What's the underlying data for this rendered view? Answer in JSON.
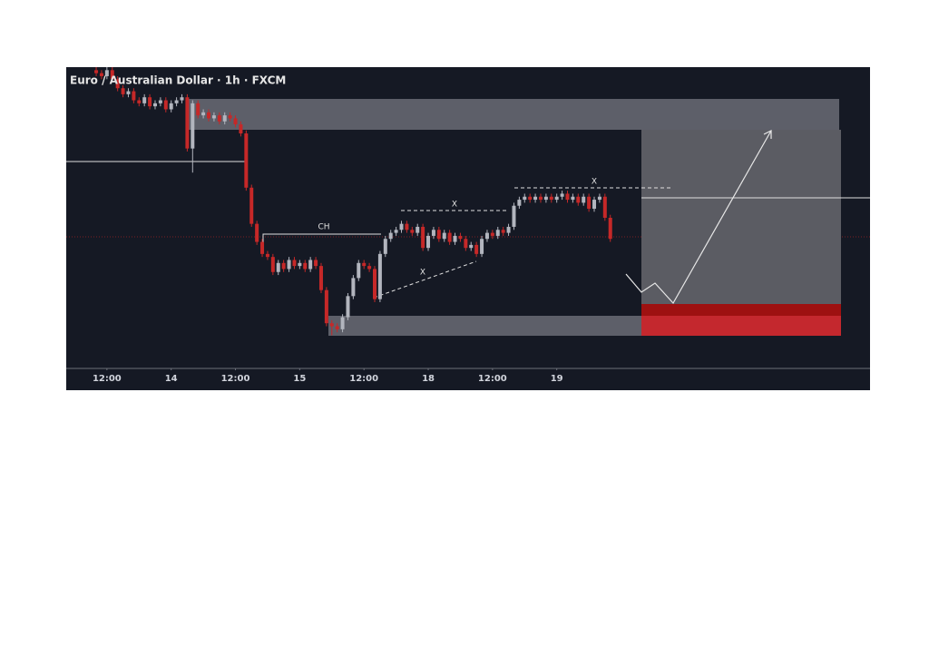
{
  "chart_data": {
    "type": "candlestick",
    "title": "Euro / Australian Dollar · 1h · FXCM",
    "x": [
      10,
      11,
      12,
      13,
      14,
      15,
      16,
      17,
      18,
      19,
      20,
      21,
      22,
      23,
      24,
      25,
      26,
      27,
      28,
      29,
      30,
      31,
      32,
      33,
      34,
      35,
      36,
      37,
      38,
      39,
      40,
      41,
      42,
      43,
      44,
      45,
      46,
      47,
      48,
      49,
      50,
      51,
      52,
      53,
      54,
      55,
      56,
      57,
      58,
      59,
      60,
      61,
      62,
      63,
      64,
      65,
      66,
      67,
      68,
      69,
      70,
      71,
      72,
      73,
      74,
      75,
      76,
      77,
      78,
      79,
      80,
      81,
      82,
      83,
      84,
      85,
      86,
      87,
      88,
      89,
      90,
      91,
      92,
      93,
      94,
      95,
      96,
      97,
      98,
      99,
      100,
      101,
      102,
      103,
      104,
      105,
      106
    ],
    "open": [
      99,
      98,
      97,
      99,
      96,
      93,
      91,
      92,
      89,
      88,
      90,
      87,
      88,
      89,
      86,
      88,
      89,
      90,
      73,
      88,
      84,
      85,
      83,
      84,
      82,
      84,
      83,
      81,
      78,
      60,
      48,
      42,
      38,
      37,
      32,
      35,
      33,
      36,
      34,
      35,
      33,
      36,
      34,
      26,
      15,
      14,
      13,
      17,
      24,
      30,
      35,
      34,
      33,
      23,
      38,
      43,
      45,
      46,
      48,
      46,
      45,
      47,
      40,
      44,
      46,
      43,
      45,
      42,
      44,
      43,
      40,
      41,
      38,
      43,
      45,
      44,
      46,
      45,
      47,
      54,
      56,
      57,
      56,
      57,
      56,
      57,
      56,
      57,
      58,
      56,
      57,
      55,
      57,
      53,
      56,
      57,
      50
    ],
    "high": [
      100,
      99,
      100,
      100,
      97,
      94,
      93,
      93,
      90,
      91,
      91,
      89,
      90,
      90,
      89,
      90,
      91,
      91,
      89,
      89,
      86,
      86,
      85,
      85,
      85,
      85,
      84,
      82,
      79,
      61,
      49,
      43,
      39,
      38,
      36,
      36,
      37,
      37,
      36,
      36,
      37,
      37,
      35,
      27,
      16,
      15,
      18,
      25,
      31,
      36,
      36,
      35,
      34,
      39,
      44,
      46,
      47,
      49,
      49,
      47,
      48,
      48,
      45,
      47,
      47,
      46,
      46,
      45,
      45,
      44,
      42,
      42,
      44,
      46,
      46,
      47,
      47,
      48,
      55,
      57,
      58,
      58,
      58,
      58,
      58,
      58,
      58,
      59,
      59,
      58,
      58,
      58,
      58,
      57,
      58,
      58,
      51
    ],
    "low": [
      97,
      96,
      96,
      95,
      92,
      90,
      90,
      88,
      87,
      87,
      86,
      86,
      87,
      85,
      85,
      87,
      88,
      72,
      65,
      83,
      83,
      82,
      82,
      81,
      81,
      82,
      80,
      77,
      59,
      47,
      41,
      37,
      36,
      31,
      31,
      32,
      32,
      33,
      33,
      32,
      32,
      33,
      25,
      14,
      11,
      12,
      12,
      16,
      23,
      29,
      33,
      32,
      22,
      22,
      37,
      42,
      44,
      45,
      45,
      44,
      44,
      39,
      39,
      43,
      42,
      42,
      41,
      41,
      42,
      39,
      39,
      37,
      37,
      42,
      43,
      43,
      44,
      44,
      46,
      53,
      55,
      55,
      55,
      55,
      55,
      55,
      55,
      56,
      55,
      55,
      54,
      54,
      52,
      52,
      55,
      49,
      42
    ],
    "close": [
      98,
      97,
      99,
      96,
      93,
      91,
      92,
      89,
      88,
      90,
      87,
      88,
      89,
      86,
      88,
      89,
      90,
      73,
      88,
      84,
      85,
      83,
      84,
      82,
      84,
      83,
      81,
      78,
      60,
      48,
      42,
      38,
      37,
      32,
      35,
      33,
      36,
      34,
      35,
      33,
      36,
      34,
      26,
      15,
      14,
      13,
      17,
      24,
      30,
      35,
      34,
      33,
      23,
      38,
      43,
      45,
      46,
      48,
      46,
      45,
      47,
      40,
      44,
      46,
      43,
      45,
      42,
      44,
      43,
      40,
      41,
      38,
      43,
      45,
      44,
      46,
      45,
      47,
      54,
      56,
      57,
      56,
      57,
      56,
      57,
      56,
      57,
      58,
      56,
      57,
      55,
      57,
      53,
      56,
      57,
      50,
      43
    ],
    "up_color": "#b2b5be",
    "down_color": "#c62828",
    "xlim": [
      4.4,
      154.5
    ],
    "ylim": [
      0,
      100
    ],
    "xticks": [
      {
        "value": 12,
        "label": "12:00"
      },
      {
        "value": 24,
        "label": "14"
      },
      {
        "value": 36,
        "label": "12:00"
      },
      {
        "value": 48,
        "label": "15"
      },
      {
        "value": 60,
        "label": "12:00"
      },
      {
        "value": 72,
        "label": "18"
      },
      {
        "value": 84,
        "label": "12:00"
      },
      {
        "value": 96,
        "label": "19"
      }
    ],
    "annotations": [
      "CH",
      "X",
      "X",
      "X"
    ]
  }
}
